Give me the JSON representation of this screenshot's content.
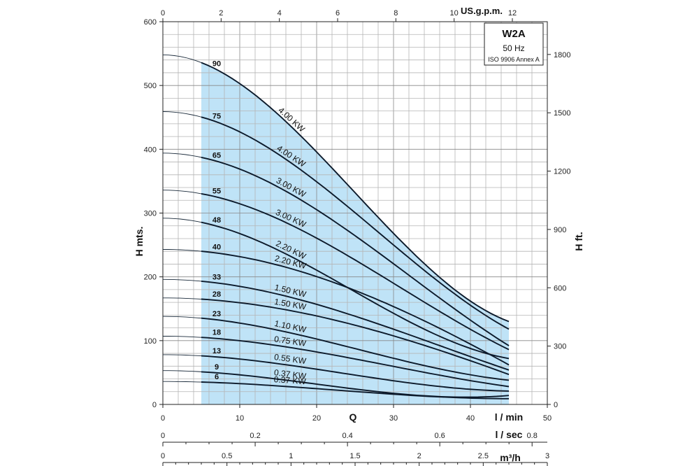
{
  "chart_data": {
    "type": "line",
    "legend": {
      "title": "W2A",
      "frequency": "50 Hz",
      "standard": "ISO 9906 Annex A",
      "placement": "top-right"
    },
    "left_axis": {
      "label": "H mts.",
      "ticks": [
        "0",
        "100",
        "200",
        "300",
        "400",
        "500",
        "600"
      ],
      "ylim": [
        0,
        600
      ]
    },
    "right_axis": {
      "label": "H ft.",
      "ticks": [
        "0",
        "300",
        "600",
        "900",
        "1200",
        "1500",
        "1800"
      ],
      "ylim": [
        0,
        1968.5
      ]
    },
    "top_axis": {
      "label": "US.g.p.m.",
      "ticks": [
        "0",
        "2",
        "4",
        "6",
        "8",
        "10",
        "12"
      ],
      "xlim": [
        0,
        13.2
      ]
    },
    "bottom_axis": {
      "label": "l / min",
      "q_label": "Q",
      "ticks": [
        "0",
        "10",
        "20",
        "30",
        "40",
        "50"
      ],
      "xlim": [
        0,
        50
      ]
    },
    "lsec_axis": {
      "label": "l / sec",
      "ticks": [
        "0",
        "0.2",
        "0.4",
        "0.6",
        "0.8"
      ],
      "xlim": [
        0,
        0.833
      ]
    },
    "m3h_axis": {
      "label": "m³/h",
      "ticks": [
        "0",
        "0.5",
        "1",
        "1.5",
        "2",
        "2.5",
        "3"
      ],
      "xlim": [
        0,
        3
      ]
    },
    "grid": true,
    "operating_range": [
      5,
      45
    ],
    "series": [
      {
        "name": "90",
        "power": "4.00 KW",
        "h0": 548,
        "h5": 535,
        "h45": 130
      },
      {
        "name": "75",
        "power": "4.00 KW",
        "h0": 459,
        "h5": 450,
        "h45": 118
      },
      {
        "name": "65",
        "power": "3.00 KW",
        "h0": 394,
        "h5": 387,
        "h45": 92
      },
      {
        "name": "55",
        "power": "3.00 KW",
        "h0": 336,
        "h5": 330,
        "h45": 86
      },
      {
        "name": "48",
        "power": "2.20 KW",
        "h0": 292,
        "h5": 285,
        "h45": 72
      },
      {
        "name": "40",
        "power": "2.20 KW",
        "h0": 243,
        "h5": 240,
        "h45": 62
      },
      {
        "name": "33",
        "power": "1.50 KW",
        "h0": 196,
        "h5": 193,
        "h45": 54
      },
      {
        "name": "28",
        "power": "1.50 KW",
        "h0": 167,
        "h5": 165,
        "h45": 47
      },
      {
        "name": "23",
        "power": "1.10 KW",
        "h0": 138,
        "h5": 135,
        "h45": 38
      },
      {
        "name": "18",
        "power": "0.75 KW",
        "h0": 107,
        "h5": 105,
        "h45": 28
      },
      {
        "name": "13",
        "power": "0.55 KW",
        "h0": 78,
        "h5": 76,
        "h45": 21
      },
      {
        "name": "9",
        "power": "0.37 KW",
        "h0": 53,
        "h5": 51,
        "h45": 14
      },
      {
        "name": "6",
        "power": "0.37 KW",
        "h0": 36,
        "h5": 35,
        "h45": 9
      }
    ]
  }
}
